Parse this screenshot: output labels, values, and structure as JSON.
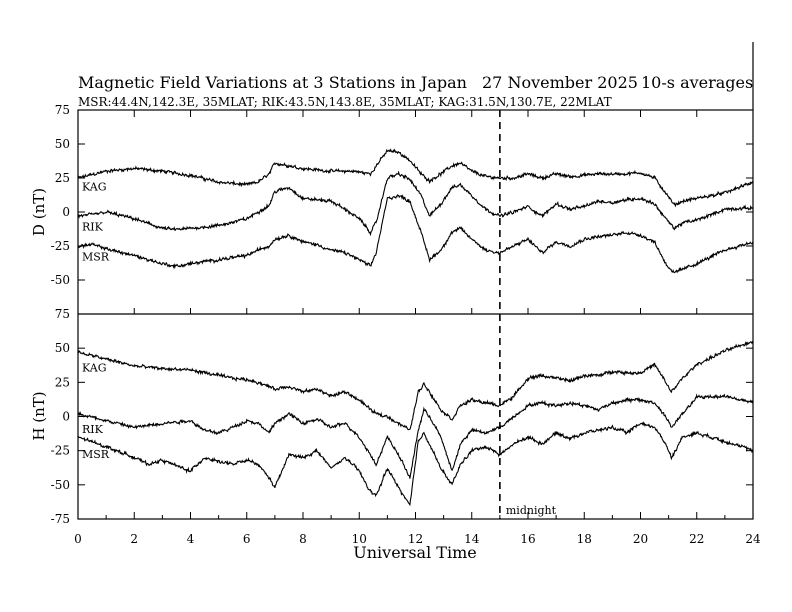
{
  "chart_data": {
    "type": "line",
    "title": "Magnetic Field Variations at 3 Stations in Japan",
    "date": "27 November 2025",
    "note": "10-s averages",
    "subtitle": "MSR:44.4N,142.3E, 35MLAT;  RIK:43.5N,143.8E, 35MLAT;  KAG:31.5N,130.7E, 22MLAT",
    "xlabel": "Universal Time",
    "xlim": [
      0,
      24
    ],
    "xticks": [
      0,
      2,
      4,
      6,
      8,
      10,
      12,
      14,
      16,
      18,
      20,
      22,
      24
    ],
    "midnight_marker": {
      "x": 15,
      "label": "midnight"
    },
    "panels": [
      {
        "name": "D",
        "ylabel": "D (nT)",
        "ylim": [
          -75,
          75
        ],
        "yticks": [
          75,
          50,
          25,
          0,
          -25,
          -50,
          -75
        ],
        "series": [
          {
            "name": "KAG",
            "x": [
              0,
              1,
              2,
              3,
              4,
              5,
              6,
              6.4,
              6.8,
              7,
              8,
              9,
              9.8,
              10.4,
              10.6,
              11,
              11.4,
              11.8,
              12.2,
              12.5,
              12.9,
              13.3,
              13.6,
              14,
              14.5,
              15,
              15.5,
              16,
              16.5,
              17,
              17.5,
              18,
              18.5,
              19,
              19.5,
              20,
              20.5,
              20.9,
              21.2,
              21.5,
              22,
              23,
              24
            ],
            "values": [
              25,
              30,
              32,
              30,
              27,
              22,
              20,
              22,
              28,
              36,
              32,
              30,
              30,
              28,
              34,
              45,
              44,
              38,
              28,
              23,
              28,
              34,
              36,
              30,
              26,
              25,
              25,
              28,
              25,
              28,
              26,
              27,
              28,
              28,
              28,
              29,
              25,
              14,
              5,
              8,
              10,
              14,
              22
            ]
          },
          {
            "name": "RIK",
            "x": [
              0,
              0.5,
              1,
              2,
              3,
              3.5,
              4,
              5,
              6,
              6.4,
              6.8,
              7,
              7.5,
              8,
              9,
              9.5,
              10,
              10.4,
              10.6,
              11,
              11.4,
              11.8,
              12.2,
              12.5,
              12.9,
              13.3,
              13.6,
              14,
              14.5,
              15,
              15.5,
              16,
              16.5,
              17,
              17.5,
              18,
              18.5,
              19,
              19.5,
              20,
              20.5,
              20.9,
              21.2,
              21.5,
              22,
              23,
              24
            ],
            "values": [
              -3,
              -2,
              0,
              -5,
              -12,
              -13,
              -12,
              -10,
              -5,
              0,
              5,
              15,
              18,
              10,
              8,
              2,
              -5,
              -15,
              -8,
              25,
              28,
              24,
              12,
              -3,
              6,
              18,
              20,
              12,
              2,
              -3,
              0,
              4,
              -3,
              6,
              2,
              4,
              8,
              7,
              9,
              10,
              6,
              -5,
              -12,
              -8,
              -6,
              2,
              3
            ]
          },
          {
            "name": "MSR",
            "x": [
              0,
              0.5,
              1,
              2,
              3,
              3.5,
              4,
              5,
              6,
              6.4,
              6.8,
              7,
              7.5,
              8,
              8.5,
              9,
              9.5,
              10,
              10.4,
              10.6,
              11,
              11.4,
              11.8,
              12.2,
              12.5,
              12.9,
              13.3,
              13.6,
              14,
              14.5,
              15,
              15.5,
              16,
              16.5,
              17,
              17.5,
              18,
              18.5,
              19,
              19.5,
              20,
              20.5,
              20.9,
              21.2,
              21.5,
              22,
              23,
              24
            ],
            "values": [
              -25,
              -24,
              -27,
              -32,
              -38,
              -40,
              -38,
              -35,
              -32,
              -28,
              -25,
              -20,
              -17,
              -22,
              -24,
              -28,
              -30,
              -35,
              -40,
              -30,
              10,
              12,
              8,
              -15,
              -35,
              -28,
              -15,
              -12,
              -20,
              -28,
              -30,
              -25,
              -20,
              -30,
              -22,
              -25,
              -20,
              -18,
              -17,
              -15,
              -17,
              -22,
              -38,
              -45,
              -42,
              -38,
              -28,
              -22
            ]
          }
        ]
      },
      {
        "name": "H",
        "ylabel": "H (nT)",
        "ylim": [
          -75,
          75
        ],
        "yticks": [
          75,
          50,
          25,
          0,
          -25,
          -50,
          -75
        ],
        "series": [
          {
            "name": "KAG",
            "x": [
              0,
              1,
              2,
              3,
              4,
              4.5,
              5,
              5.5,
              6,
              6.4,
              6.8,
              7,
              7.5,
              8,
              8.5,
              9,
              9.5,
              10,
              10.4,
              10.6,
              11,
              11.4,
              11.8,
              12.1,
              12.3,
              12.5,
              12.9,
              13.3,
              13.6,
              14,
              14.5,
              15,
              15.5,
              16,
              16.5,
              17,
              17.5,
              18,
              18.5,
              19,
              19.5,
              20,
              20.5,
              20.9,
              21.1,
              21.5,
              22,
              23,
              24
            ],
            "values": [
              47,
              42,
              37,
              35,
              34,
              32,
              30,
              28,
              27,
              25,
              22,
              20,
              22,
              18,
              20,
              15,
              18,
              12,
              5,
              2,
              0,
              -5,
              -10,
              18,
              24,
              18,
              5,
              -2,
              8,
              12,
              10,
              8,
              15,
              28,
              30,
              28,
              26,
              30,
              30,
              33,
              32,
              32,
              38,
              25,
              18,
              28,
              38,
              48,
              55
            ]
          },
          {
            "name": "RIK",
            "x": [
              0,
              1,
              2,
              3,
              4,
              4.5,
              5,
              5.5,
              6,
              6.4,
              6.8,
              7,
              7.5,
              8,
              8.5,
              9,
              9.5,
              10,
              10.4,
              10.6,
              11,
              11.4,
              11.8,
              12.1,
              12.3,
              12.5,
              12.9,
              13.3,
              13.6,
              14,
              14.5,
              15,
              15.5,
              16,
              16.5,
              17,
              17.5,
              18,
              18.5,
              19,
              19.5,
              20,
              20.5,
              20.9,
              21.1,
              21.5,
              22,
              23,
              24
            ],
            "values": [
              2,
              -3,
              -8,
              -5,
              -3,
              -10,
              -12,
              -8,
              -3,
              -5,
              -12,
              -5,
              2,
              -5,
              -2,
              -8,
              -5,
              -15,
              -28,
              -35,
              -15,
              -28,
              -45,
              -10,
              5,
              0,
              -15,
              -40,
              -20,
              -10,
              -12,
              -8,
              0,
              8,
              10,
              8,
              10,
              8,
              5,
              10,
              12,
              12,
              10,
              0,
              -8,
              2,
              14,
              15,
              10
            ]
          },
          {
            "name": "MSR",
            "x": [
              0,
              1,
              2,
              2.5,
              3,
              4,
              4.5,
              5,
              5.5,
              6,
              6.4,
              6.8,
              7,
              7.5,
              8,
              8.5,
              9,
              9.5,
              10,
              10.4,
              10.6,
              11,
              11.4,
              11.8,
              12.1,
              12.3,
              12.5,
              12.9,
              13.3,
              13.6,
              14,
              14.5,
              15,
              15.5,
              16,
              16.5,
              17,
              17.5,
              18,
              18.5,
              19,
              19.5,
              20,
              20.5,
              20.9,
              21.1,
              21.5,
              22,
              23,
              24
            ],
            "values": [
              -15,
              -22,
              -30,
              -35,
              -32,
              -40,
              -30,
              -33,
              -35,
              -32,
              -35,
              -45,
              -52,
              -28,
              -30,
              -25,
              -38,
              -30,
              -40,
              -55,
              -58,
              -38,
              -52,
              -65,
              -18,
              -12,
              -20,
              -38,
              -50,
              -35,
              -25,
              -22,
              -28,
              -20,
              -15,
              -20,
              -12,
              -16,
              -12,
              -10,
              -8,
              -12,
              -5,
              -8,
              -20,
              -30,
              -15,
              -12,
              -18,
              -25
            ]
          }
        ]
      }
    ]
  }
}
